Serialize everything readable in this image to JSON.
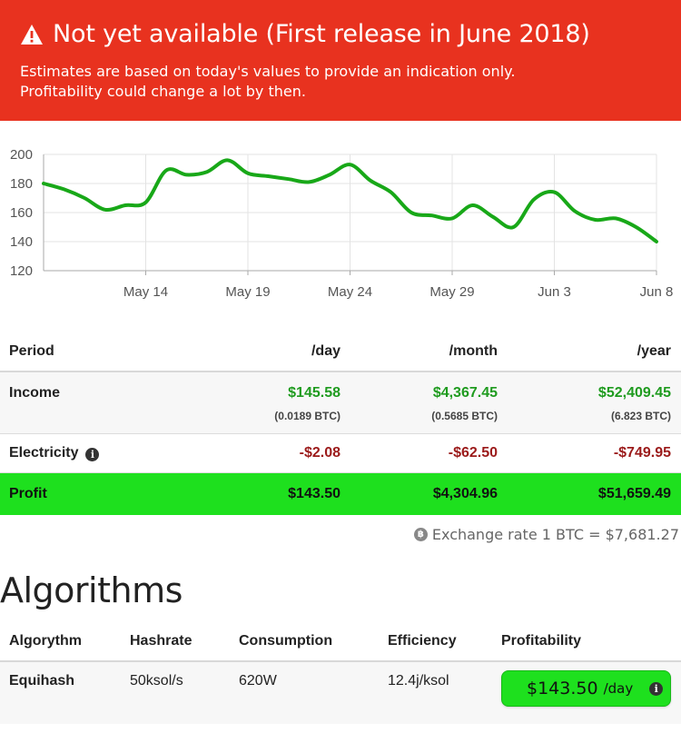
{
  "banner": {
    "title": "Not yet available (First release in June 2018)",
    "line1": "Estimates are based on today's values to provide an indication only.",
    "line2": "Profitability could change a lot by then.",
    "bg_color": "#e8321f"
  },
  "chart_data": {
    "type": "line",
    "title": "",
    "xlabel": "",
    "ylabel": "",
    "x_ticks": [
      "May 14",
      "May 19",
      "May 24",
      "May 29",
      "Jun 3",
      "Jun 8"
    ],
    "y_ticks": [
      120,
      140,
      160,
      180,
      200
    ],
    "ylim": [
      120,
      200
    ],
    "x_range": [
      "May 9",
      "Jun 8"
    ],
    "grid": true,
    "color": "#18a818",
    "x": [
      "May 9",
      "May 10",
      "May 11",
      "May 12",
      "May 13",
      "May 14",
      "May 15",
      "May 16",
      "May 17",
      "May 18",
      "May 19",
      "May 20",
      "May 21",
      "May 22",
      "May 23",
      "May 24",
      "May 25",
      "May 26",
      "May 27",
      "May 28",
      "May 29",
      "May 30",
      "May 31",
      "Jun 1",
      "Jun 2",
      "Jun 3",
      "Jun 4",
      "Jun 5",
      "Jun 6",
      "Jun 7",
      "Jun 8"
    ],
    "values": [
      180,
      176,
      170,
      162,
      165,
      167,
      189,
      186,
      188,
      196,
      187,
      185,
      183,
      181,
      186,
      193,
      182,
      174,
      160,
      158,
      156,
      165,
      157,
      150,
      169,
      174,
      161,
      155,
      156,
      150,
      140
    ]
  },
  "periods": {
    "headers": [
      "Period",
      "/day",
      "/month",
      "/year"
    ],
    "income": {
      "label": "Income",
      "day": "$145.58",
      "day_btc": "(0.0189 BTC)",
      "month": "$4,367.45",
      "month_btc": "(0.5685 BTC)",
      "year": "$52,409.45",
      "year_btc": "(6.823 BTC)"
    },
    "electricity": {
      "label": "Electricity",
      "info_icon": "info-icon",
      "day": "-$2.08",
      "month": "-$62.50",
      "year": "-$749.95"
    },
    "profit": {
      "label": "Profit",
      "day": "$143.50",
      "month": "$4,304.96",
      "year": "$51,659.49"
    }
  },
  "exchange": {
    "text": "Exchange rate 1 BTC = $7,681.27",
    "icon": "bitcoin-icon"
  },
  "algorithms": {
    "title": "Algorithms",
    "headers": [
      "Algorythm",
      "Hashrate",
      "Consumption",
      "Efficiency",
      "Profitability"
    ],
    "rows": [
      {
        "algorithm": "Equihash",
        "hashrate": "50ksol/s",
        "consumption": "620W",
        "efficiency": "12.4j/ksol",
        "profitability": "$143.50",
        "unit": "/day"
      }
    ]
  },
  "colors": {
    "profit_green": "#1ee01e",
    "income_green": "#1f9b1f",
    "negative_red": "#9b1a1a"
  }
}
